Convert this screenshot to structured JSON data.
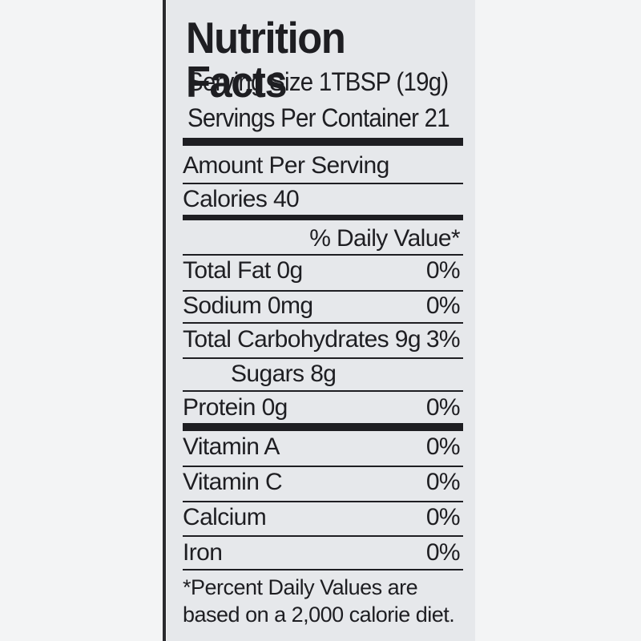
{
  "label": {
    "title": "Nutrition Facts",
    "serving_size": "Serving Size 1TBSP (19g)",
    "servings_per_container": "Servings Per Container 21",
    "amount_per_serving": "Amount Per Serving",
    "calories": "Calories 40",
    "daily_value_header": "% Daily Value*",
    "nutrients": [
      {
        "name": "Total Fat  0g",
        "dv": "0%"
      },
      {
        "name": "Sodium 0mg",
        "dv": "0%"
      },
      {
        "name": "Total Carbohydrates  9g",
        "dv": "3%"
      },
      {
        "name": "Sugars 8g",
        "dv": ""
      },
      {
        "name": "Protein 0g",
        "dv": "0%"
      }
    ],
    "vitamins": [
      {
        "name": "Vitamin A",
        "dv": "0%"
      },
      {
        "name": "Vitamin C",
        "dv": "0%"
      },
      {
        "name": "Calcium",
        "dv": "0%"
      },
      {
        "name": "Iron",
        "dv": "0%"
      }
    ],
    "footnote": "*Percent Daily Values are based on a 2,000 calorie diet."
  }
}
